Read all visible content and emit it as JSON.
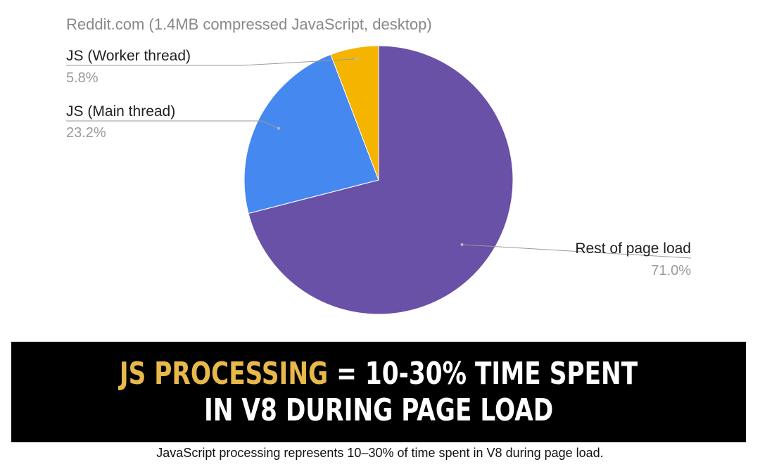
{
  "chart_data": {
    "type": "pie",
    "title": "Reddit.com (1.4MB compressed JavaScript, desktop)",
    "slices": [
      {
        "label": "Rest of page load",
        "value": 71.0,
        "value_label": "71.0%",
        "color": "#6a51a8"
      },
      {
        "label": "JS (Main thread)",
        "value": 23.2,
        "value_label": "23.2%",
        "color": "#4488f0"
      },
      {
        "label": "JS (Worker thread)",
        "value": 5.8,
        "value_label": "5.8%",
        "color": "#f4b400"
      }
    ],
    "start": "12 o'clock",
    "direction": "clockwise"
  },
  "banner": {
    "highlight": "JS PROCESSING",
    "line1_rest": " = 10-30% TIME SPENT",
    "line2": "IN V8 DURING PAGE LOAD",
    "highlight_color": "#e8b84a",
    "background_color": "#000000"
  },
  "caption": "JavaScript processing represents 10–30% of time spent in V8 during page load."
}
